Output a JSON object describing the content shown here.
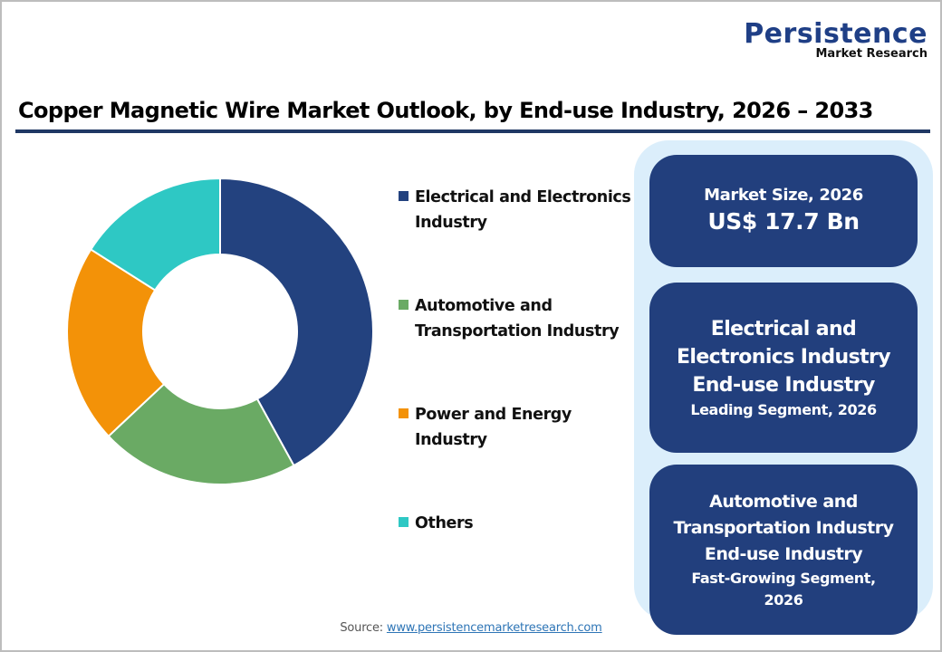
{
  "logo": {
    "brand": "Persistence",
    "subtitle": "Market Research"
  },
  "title": "Copper Magnetic Wire Market Outlook, by End-use Industry, 2026 – 2033",
  "legend": [
    {
      "label_line1": "Electrical and Electronics",
      "label_line2": "Industry",
      "color": "#23427f"
    },
    {
      "label_line1": "Automotive and",
      "label_line2": "Transportation Industry",
      "color": "#6aaa64"
    },
    {
      "label_line1": "Power and Energy",
      "label_line2": "Industry",
      "color": "#f39208"
    },
    {
      "label_line1": "Others",
      "label_line2": "",
      "color": "#2ec8c4"
    }
  ],
  "cards": {
    "market_size": {
      "label": "Market Size, 2026",
      "value": "US$ 17.7 Bn"
    },
    "leading": {
      "line1": "Electrical and",
      "line2": "Electronics Industry",
      "line3": "End-use Industry",
      "note": "Leading Segment, 2026"
    },
    "fastest": {
      "line1": "Automotive and",
      "line2": "Transportation Industry",
      "line3": "End-use Industry",
      "note1": "Fast-Growing Segment,",
      "note2": "2026"
    }
  },
  "source": {
    "prefix": "Source: ",
    "link": "www.persistencemarketresearch.com"
  },
  "chart_data": {
    "type": "pie",
    "subtype": "donut",
    "title": "Copper Magnetic Wire Market Outlook, by End-use Industry, 2026 – 2033",
    "categories": [
      "Electrical and Electronics Industry",
      "Automotive and Transportation Industry",
      "Power and Energy Industry",
      "Others"
    ],
    "values": [
      42,
      21,
      21,
      16
    ],
    "unit": "% share (estimated from slice angles)",
    "colors": [
      "#23427f",
      "#6aaa64",
      "#f39208",
      "#2ec8c4"
    ],
    "start_angle": "12 o'clock, clockwise",
    "legend_position": "right"
  }
}
